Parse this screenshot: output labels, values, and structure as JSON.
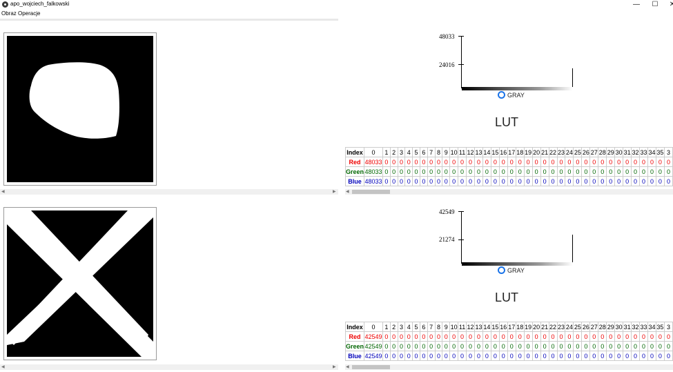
{
  "window": {
    "title": "apo_wojciech_falkowski",
    "minimize": "—",
    "maximize": "☐",
    "close": "✕"
  },
  "menu": [
    "Obraz",
    "Operacje"
  ],
  "panels": [
    {
      "image_name": "blob-image",
      "histogram": {
        "max_label": "48033",
        "mid_label": "24016",
        "channel": "GRAY"
      },
      "lut_title": "LUT",
      "lut": {
        "index_label": "Index",
        "red_label": "Red",
        "green_label": "Green",
        "blue_label": "Blue",
        "first_value": "48033",
        "indices": [
          "0",
          "1",
          "2",
          "3",
          "4",
          "5",
          "6",
          "7",
          "8",
          "9",
          "10",
          "11",
          "12",
          "13",
          "14",
          "15",
          "16",
          "17",
          "18",
          "19",
          "20",
          "21",
          "22",
          "23",
          "24",
          "25",
          "26",
          "27",
          "28",
          "29",
          "30",
          "31",
          "32",
          "33",
          "34",
          "35",
          "3"
        ],
        "rest_value": "0"
      }
    },
    {
      "image_name": "cross-image",
      "histogram": {
        "max_label": "42549",
        "mid_label": "21274",
        "channel": "GRAY"
      },
      "lut_title": "LUT",
      "lut": {
        "index_label": "Index",
        "red_label": "Red",
        "green_label": "Green",
        "blue_label": "Blue",
        "first_value": "42549",
        "indices": [
          "0",
          "1",
          "2",
          "3",
          "4",
          "5",
          "6",
          "7",
          "8",
          "9",
          "10",
          "11",
          "12",
          "13",
          "14",
          "15",
          "16",
          "17",
          "18",
          "19",
          "20",
          "21",
          "22",
          "23",
          "24",
          "25",
          "26",
          "27",
          "28",
          "29",
          "30",
          "31",
          "32",
          "33",
          "34",
          "35",
          "3"
        ],
        "rest_value": "0"
      }
    }
  ]
}
